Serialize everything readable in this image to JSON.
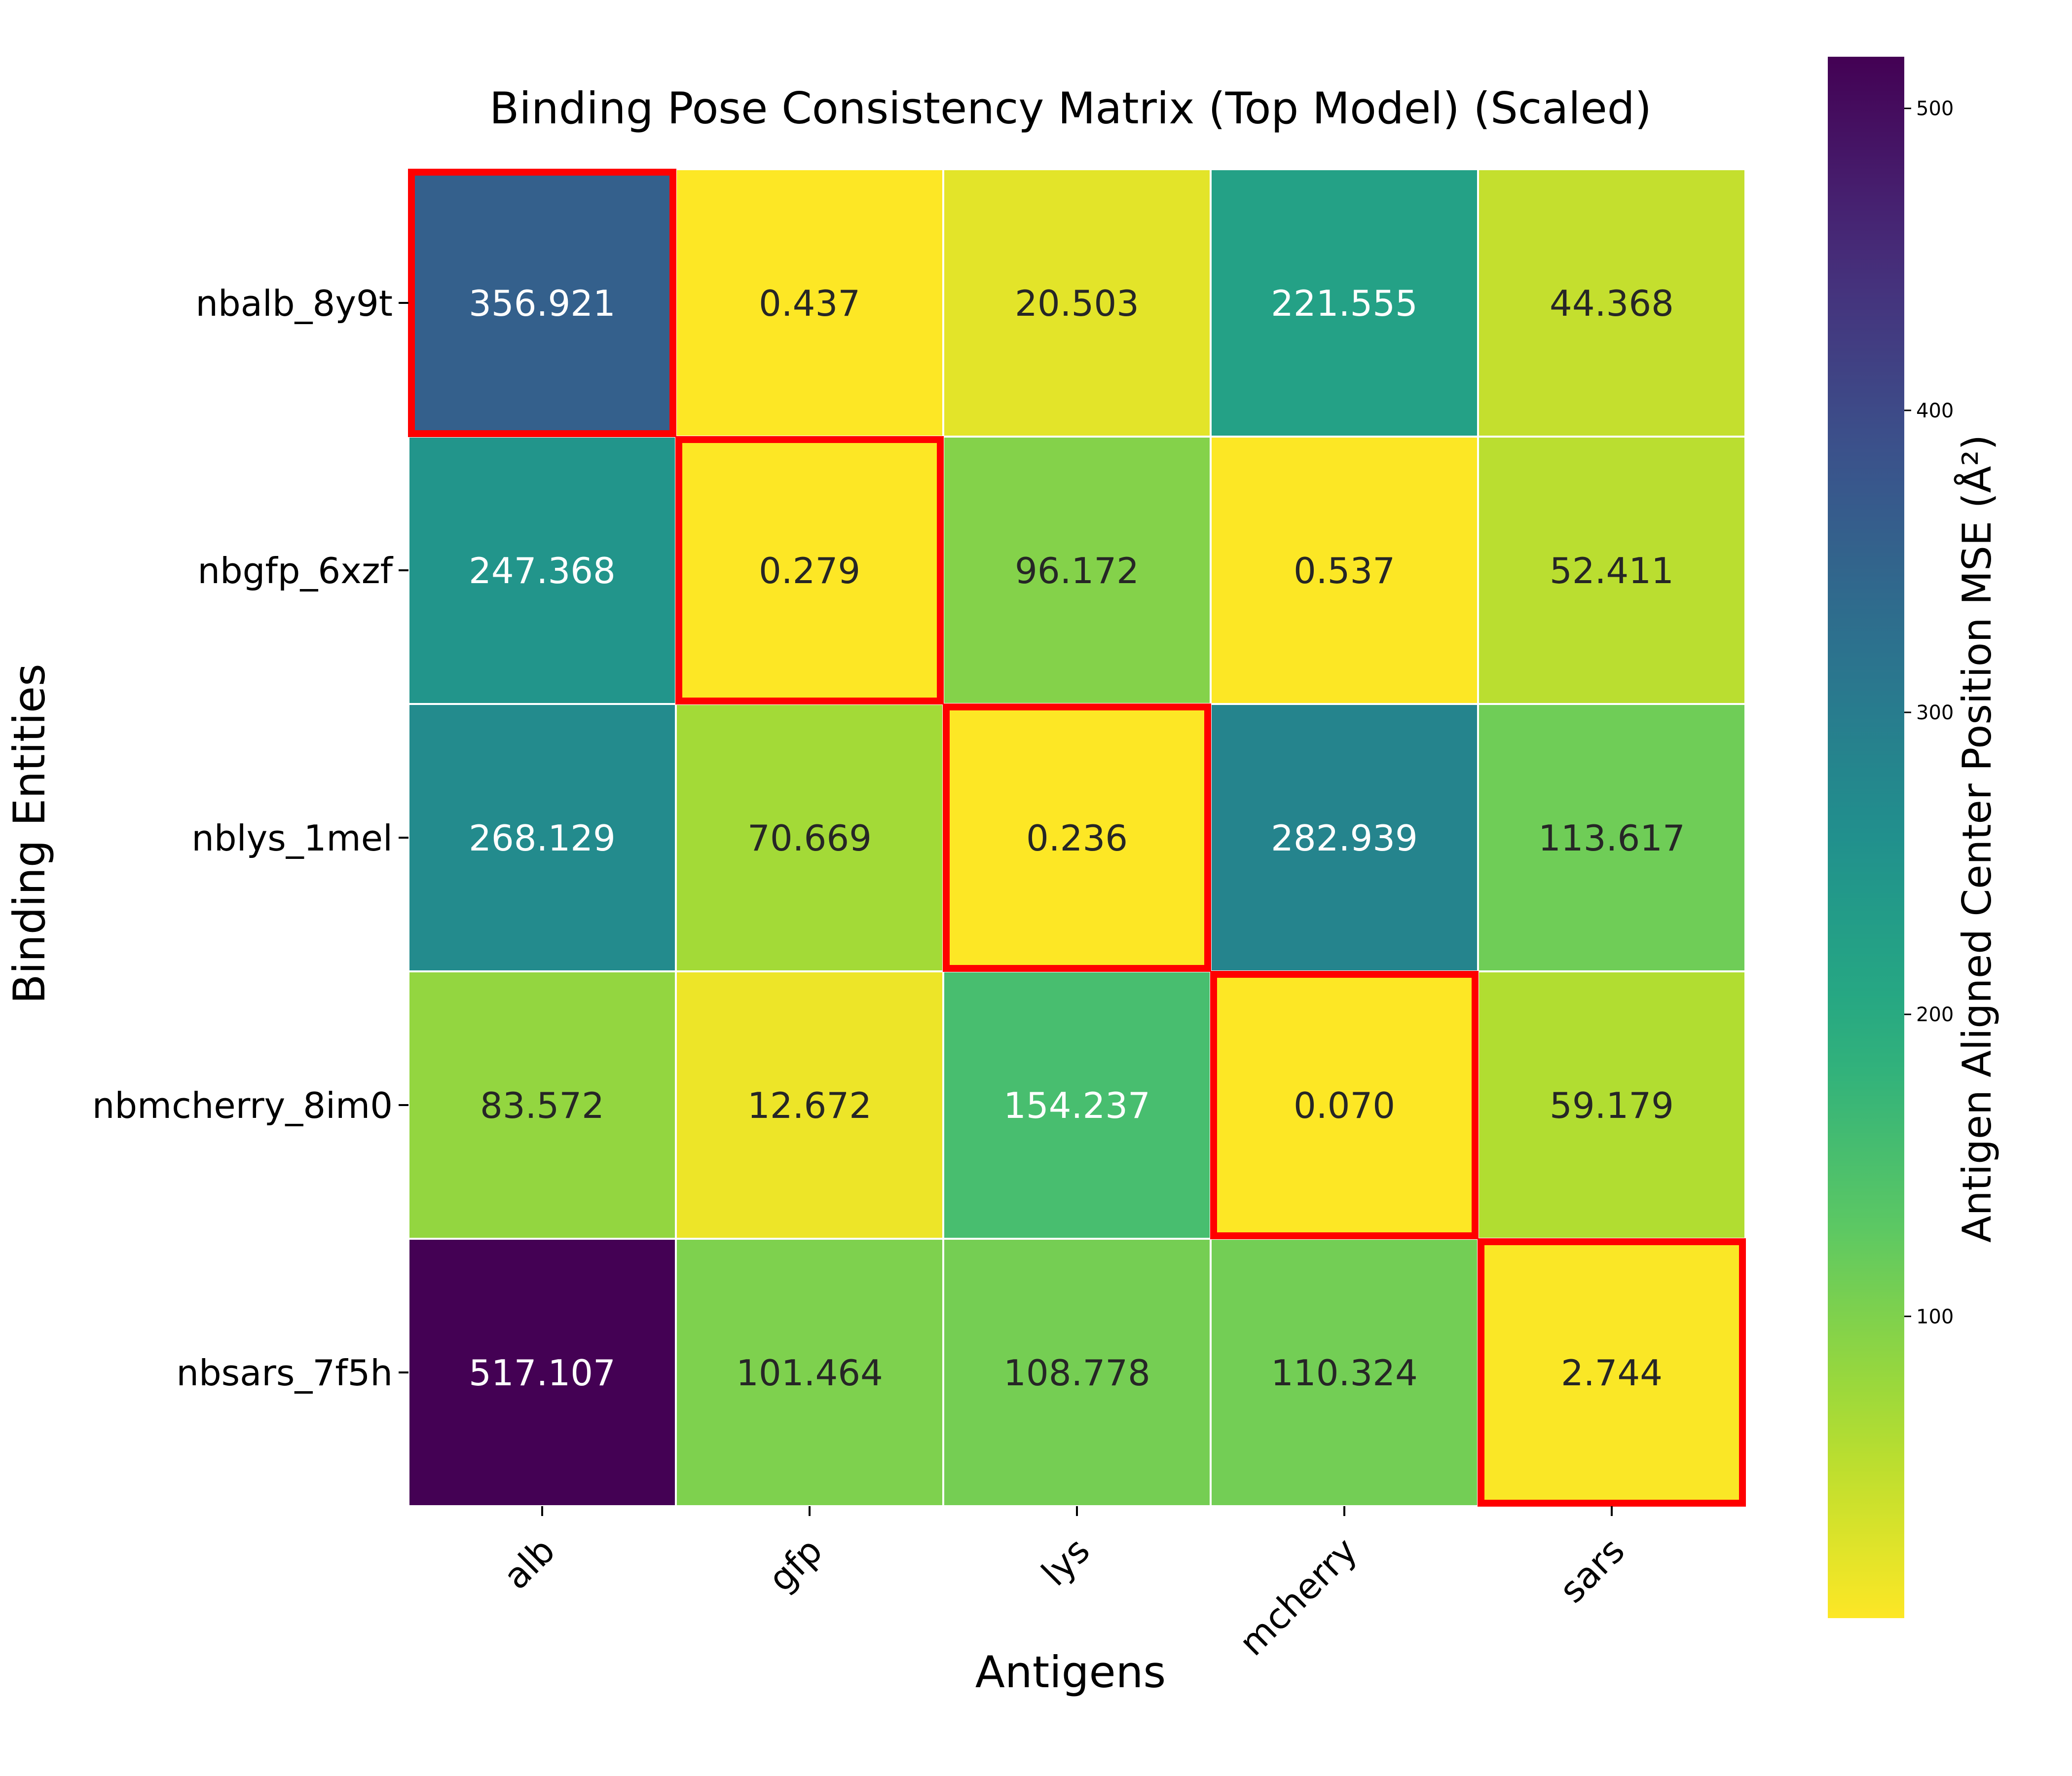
{
  "chart_data": {
    "type": "heatmap",
    "title": "Binding Pose Consistency Matrix (Top Model) (Scaled)",
    "xlabel": "Antigens",
    "ylabel": "Binding Entities",
    "x_categories": [
      "alb",
      "gfp",
      "lys",
      "mcherry",
      "sars"
    ],
    "y_categories": [
      "nbalb_8y9t",
      "nbgfp_6xzf",
      "nblys_1mel",
      "nbmcherry_8im0",
      "nbsars_7f5h"
    ],
    "values": [
      [
        356.921,
        0.437,
        20.503,
        221.555,
        44.368
      ],
      [
        247.368,
        0.279,
        96.172,
        0.537,
        52.411
      ],
      [
        268.129,
        70.669,
        0.236,
        282.939,
        113.617
      ],
      [
        83.572,
        12.672,
        154.237,
        0.07,
        59.179
      ],
      [
        517.107,
        101.464,
        108.778,
        110.324,
        2.744
      ]
    ],
    "value_labels": [
      [
        "356.921",
        "0.437",
        "20.503",
        "221.555",
        "44.368"
      ],
      [
        "247.368",
        "0.279",
        "96.172",
        "0.537",
        "52.411"
      ],
      [
        "268.129",
        "70.669",
        "0.236",
        "282.939",
        "113.617"
      ],
      [
        "83.572",
        "12.672",
        "154.237",
        "0.070",
        "59.179"
      ],
      [
        "517.107",
        "101.464",
        "108.778",
        "110.324",
        "2.744"
      ]
    ],
    "colormap": "viridis_r",
    "color_range": [
      0.07,
      517.107
    ],
    "highlight_diagonal": true,
    "highlight_color": "#ff0000",
    "colorbar": {
      "label": "Antigen Aligned Center Position MSE (Å²)",
      "ticks": [
        100,
        200,
        300,
        400,
        500
      ],
      "tick_labels": [
        "100",
        "200",
        "300",
        "400",
        "500"
      ]
    }
  }
}
